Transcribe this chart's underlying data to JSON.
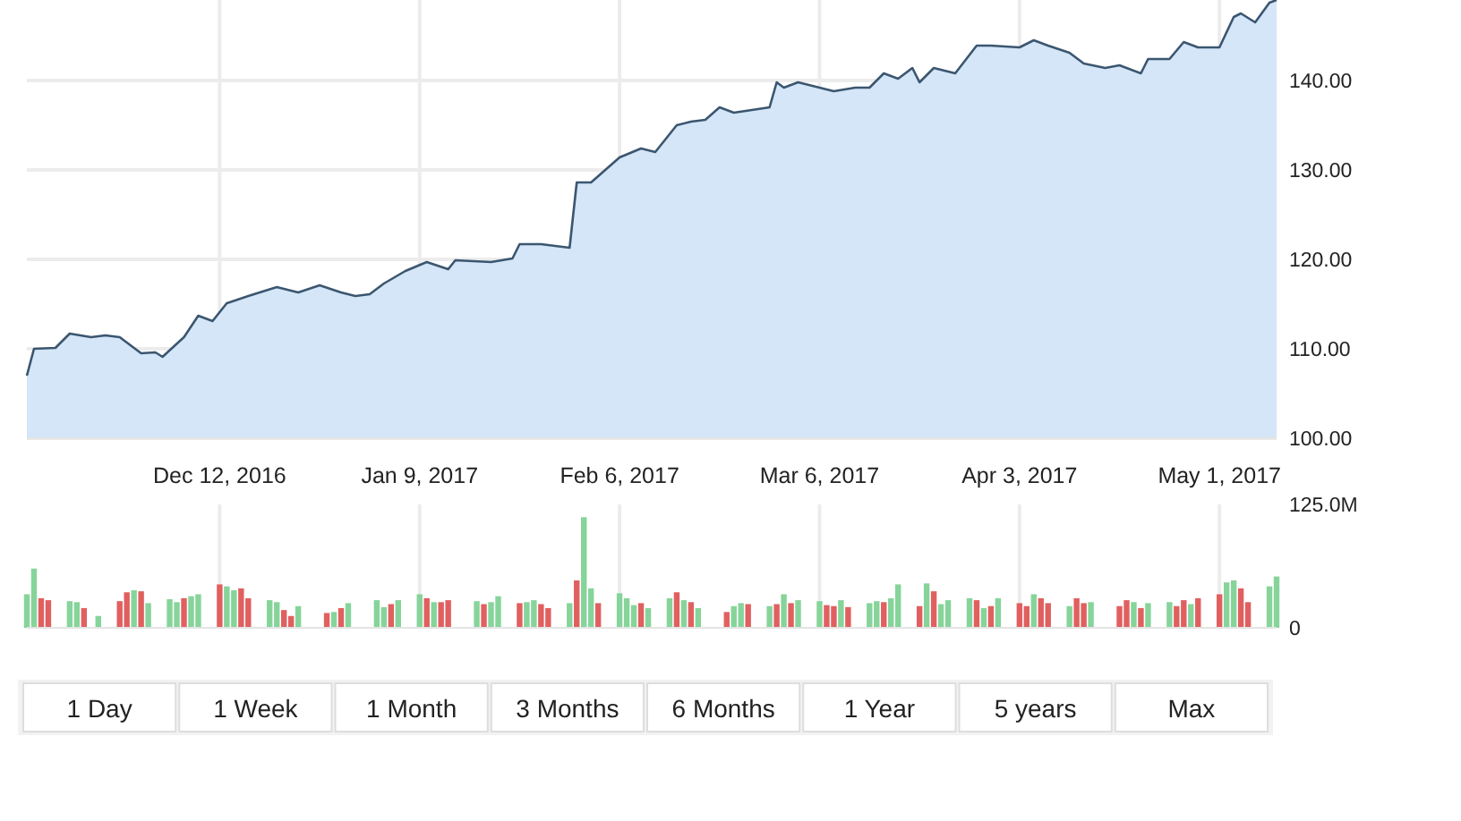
{
  "chart_data": [
    {
      "type": "area",
      "xlim": [
        "2016-11-15",
        "2017-05-09"
      ],
      "ylim": [
        100,
        149
      ],
      "grid": true,
      "xticks": [
        {
          "value": "2016-12-12",
          "label": "Dec 12, 2016"
        },
        {
          "value": "2017-01-09",
          "label": "Jan 9, 2017"
        },
        {
          "value": "2017-02-06",
          "label": "Feb 6, 2017"
        },
        {
          "value": "2017-03-06",
          "label": "Mar 6, 2017"
        },
        {
          "value": "2017-04-03",
          "label": "Apr 3, 2017"
        },
        {
          "value": "2017-05-01",
          "label": "May 1, 2017"
        }
      ],
      "yticks": [
        {
          "value": 100,
          "label": "100.00"
        },
        {
          "value": 110,
          "label": "110.00"
        },
        {
          "value": 120,
          "label": "120.00"
        },
        {
          "value": 130,
          "label": "130.00"
        },
        {
          "value": 140,
          "label": "140.00"
        }
      ],
      "series": [
        {
          "color": "#3b5670",
          "x": [
            "2016-11-15",
            "2016-11-16",
            "2016-11-19",
            "2016-11-21",
            "2016-11-24",
            "2016-11-26",
            "2016-11-28",
            "2016-12-01",
            "2016-12-03",
            "2016-12-04",
            "2016-12-07",
            "2016-12-09",
            "2016-12-11",
            "2016-12-13",
            "2016-12-16",
            "2016-12-20",
            "2016-12-23",
            "2016-12-26",
            "2016-12-29",
            "2016-12-31",
            "2017-01-02",
            "2017-01-04",
            "2017-01-07",
            "2017-01-10",
            "2017-01-13",
            "2017-01-14",
            "2017-01-19",
            "2017-01-22",
            "2017-01-23",
            "2017-01-26",
            "2017-01-30",
            "2017-01-31",
            "2017-02-02",
            "2017-02-06",
            "2017-02-09",
            "2017-02-11",
            "2017-02-14",
            "2017-02-16",
            "2017-02-18",
            "2017-02-20",
            "2017-02-22",
            "2017-02-27",
            "2017-02-28",
            "2017-03-01",
            "2017-03-03",
            "2017-03-08",
            "2017-03-11",
            "2017-03-13",
            "2017-03-15",
            "2017-03-17",
            "2017-03-19",
            "2017-03-20",
            "2017-03-22",
            "2017-03-25",
            "2017-03-28",
            "2017-03-30",
            "2017-04-03",
            "2017-04-05",
            "2017-04-07",
            "2017-04-10",
            "2017-04-12",
            "2017-04-15",
            "2017-04-17",
            "2017-04-20",
            "2017-04-21",
            "2017-04-24",
            "2017-04-26",
            "2017-04-28",
            "2017-05-01",
            "2017-05-03",
            "2017-05-04",
            "2017-05-06",
            "2017-05-08",
            "2017-05-09"
          ],
          "values": [
            107.0,
            110.0,
            110.1,
            111.7,
            111.3,
            111.5,
            111.3,
            109.5,
            109.6,
            109.1,
            111.3,
            113.7,
            113.1,
            115.1,
            115.9,
            116.9,
            116.3,
            117.1,
            116.3,
            115.9,
            116.1,
            117.3,
            118.7,
            119.7,
            118.9,
            119.9,
            119.7,
            120.1,
            121.7,
            121.7,
            121.3,
            128.6,
            128.6,
            131.4,
            132.4,
            132.0,
            135.0,
            135.4,
            135.6,
            137.0,
            136.4,
            137.0,
            139.8,
            139.2,
            139.8,
            138.8,
            139.2,
            139.2,
            140.8,
            140.2,
            141.4,
            139.8,
            141.4,
            140.8,
            143.9,
            143.9,
            143.7,
            144.5,
            143.9,
            143.1,
            141.9,
            141.4,
            141.7,
            140.8,
            142.4,
            142.4,
            144.3,
            143.7,
            143.7,
            147.1,
            147.5,
            146.5,
            148.7,
            149.0
          ]
        }
      ]
    },
    {
      "type": "bar",
      "xlim": [
        "2016-11-15",
        "2017-05-09"
      ],
      "ylim": [
        0,
        125
      ],
      "grid": "x",
      "tick_labels": "y",
      "xticks": [
        {
          "value": "2016-12-12",
          "label": null
        },
        {
          "value": "2017-01-09",
          "label": null
        },
        {
          "value": "2017-02-06",
          "label": null
        },
        {
          "value": "2017-03-06",
          "label": null
        },
        {
          "value": "2017-04-03",
          "label": null
        },
        {
          "value": "2017-05-01",
          "label": null
        }
      ],
      "yticks": [
        0,
        {
          "value": 125,
          "label": "125.0M"
        }
      ],
      "x": [
        "2016-11-15",
        "2016-11-16",
        "2016-11-17",
        "2016-11-18",
        "2016-11-21",
        "2016-11-22",
        "2016-11-23",
        "2016-11-25",
        "2016-11-28",
        "2016-11-29",
        "2016-11-30",
        "2016-12-01",
        "2016-12-02",
        "2016-12-05",
        "2016-12-06",
        "2016-12-07",
        "2016-12-08",
        "2016-12-09",
        "2016-12-12",
        "2016-12-13",
        "2016-12-14",
        "2016-12-15",
        "2016-12-16",
        "2016-12-19",
        "2016-12-20",
        "2016-12-21",
        "2016-12-22",
        "2016-12-23",
        "2016-12-27",
        "2016-12-28",
        "2016-12-29",
        "2016-12-30",
        "2017-01-03",
        "2017-01-04",
        "2017-01-05",
        "2017-01-06",
        "2017-01-09",
        "2017-01-10",
        "2017-01-11",
        "2017-01-12",
        "2017-01-13",
        "2017-01-17",
        "2017-01-18",
        "2017-01-19",
        "2017-01-20",
        "2017-01-23",
        "2017-01-24",
        "2017-01-25",
        "2017-01-26",
        "2017-01-27",
        "2017-01-30",
        "2017-01-31",
        "2017-02-01",
        "2017-02-02",
        "2017-02-03",
        "2017-02-06",
        "2017-02-07",
        "2017-02-08",
        "2017-02-09",
        "2017-02-10",
        "2017-02-13",
        "2017-02-14",
        "2017-02-15",
        "2017-02-16",
        "2017-02-17",
        "2017-02-21",
        "2017-02-22",
        "2017-02-23",
        "2017-02-24",
        "2017-02-27",
        "2017-02-28",
        "2017-03-01",
        "2017-03-02",
        "2017-03-03",
        "2017-03-06",
        "2017-03-07",
        "2017-03-08",
        "2017-03-09",
        "2017-03-10",
        "2017-03-13",
        "2017-03-14",
        "2017-03-15",
        "2017-03-16",
        "2017-03-17",
        "2017-03-20",
        "2017-03-21",
        "2017-03-22",
        "2017-03-23",
        "2017-03-24",
        "2017-03-27",
        "2017-03-28",
        "2017-03-29",
        "2017-03-30",
        "2017-03-31",
        "2017-04-03",
        "2017-04-04",
        "2017-04-05",
        "2017-04-06",
        "2017-04-07",
        "2017-04-10",
        "2017-04-11",
        "2017-04-12",
        "2017-04-13",
        "2017-04-17",
        "2017-04-18",
        "2017-04-19",
        "2017-04-20",
        "2017-04-21",
        "2017-04-24",
        "2017-04-25",
        "2017-04-26",
        "2017-04-27",
        "2017-04-28",
        "2017-05-01",
        "2017-05-02",
        "2017-05-03",
        "2017-05-04",
        "2017-05-05",
        "2017-05-08",
        "2017-05-09"
      ],
      "values": [
        34,
        60,
        30,
        28,
        27,
        26,
        20,
        12,
        27,
        36,
        38,
        37,
        25,
        29,
        26,
        30,
        32,
        34,
        44,
        42,
        38,
        40,
        30,
        28,
        26,
        18,
        12,
        22,
        15,
        16,
        20,
        25,
        28,
        21,
        24,
        28,
        34,
        30,
        26,
        26,
        28,
        27,
        24,
        26,
        32,
        25,
        26,
        28,
        24,
        20,
        25,
        48,
        112,
        40,
        25,
        35,
        30,
        23,
        25,
        20,
        30,
        36,
        28,
        26,
        20,
        16,
        22,
        25,
        24,
        22,
        24,
        34,
        25,
        28,
        27,
        23,
        22,
        28,
        21,
        25,
        27,
        26,
        30,
        44,
        22,
        45,
        37,
        24,
        28,
        30,
        28,
        20,
        22,
        30,
        25,
        22,
        34,
        30,
        25,
        22,
        30,
        25,
        26,
        22,
        28,
        26,
        20,
        25,
        26,
        22,
        28,
        24,
        30,
        34,
        46,
        48,
        40,
        26,
        42,
        52
      ],
      "colors": [
        "#86d49a",
        "#86d49a",
        "#e06060",
        "#e06060",
        "#86d49a",
        "#86d49a",
        "#e06060",
        "#86d49a",
        "#e06060",
        "#e06060",
        "#86d49a",
        "#e06060",
        "#86d49a",
        "#86d49a",
        "#86d49a",
        "#e06060",
        "#86d49a",
        "#86d49a",
        "#e06060",
        "#86d49a",
        "#86d49a",
        "#e06060",
        "#e06060",
        "#86d49a",
        "#86d49a",
        "#e06060",
        "#e06060",
        "#86d49a",
        "#e06060",
        "#86d49a",
        "#e06060",
        "#86d49a",
        "#86d49a",
        "#86d49a",
        "#e06060",
        "#86d49a",
        "#86d49a",
        "#e06060",
        "#86d49a",
        "#e06060",
        "#e06060",
        "#86d49a",
        "#e06060",
        "#86d49a",
        "#86d49a",
        "#e06060",
        "#86d49a",
        "#86d49a",
        "#e06060",
        "#e06060",
        "#86d49a",
        "#e06060",
        "#86d49a",
        "#86d49a",
        "#e06060",
        "#86d49a",
        "#86d49a",
        "#86d49a",
        "#e06060",
        "#86d49a",
        "#86d49a",
        "#e06060",
        "#86d49a",
        "#e06060",
        "#86d49a",
        "#e06060",
        "#86d49a",
        "#86d49a",
        "#e06060",
        "#86d49a",
        "#e06060",
        "#86d49a",
        "#e06060",
        "#86d49a",
        "#86d49a",
        "#e06060",
        "#e06060",
        "#86d49a",
        "#e06060",
        "#86d49a",
        "#86d49a",
        "#e06060",
        "#86d49a",
        "#86d49a",
        "#e06060",
        "#86d49a",
        "#e06060",
        "#86d49a",
        "#86d49a",
        "#86d49a",
        "#e06060",
        "#86d49a",
        "#e06060",
        "#86d49a",
        "#e06060",
        "#e06060",
        "#86d49a",
        "#e06060",
        "#e06060",
        "#86d49a",
        "#e06060",
        "#e06060",
        "#86d49a",
        "#e06060",
        "#e06060",
        "#86d49a",
        "#e06060",
        "#86d49a",
        "#86d49a",
        "#e06060",
        "#e06060",
        "#86d49a",
        "#e06060",
        "#e06060",
        "#86d49a",
        "#86d49a",
        "#e06060",
        "#e06060",
        "#86d49a",
        "#86d49a"
      ]
    },
    {
      "type": "other",
      "annotations": [
        "1 Day",
        "1 Week",
        "1 Month",
        "3 Months",
        "6 Months",
        "1 Year",
        "5 years",
        "Max"
      ]
    }
  ]
}
